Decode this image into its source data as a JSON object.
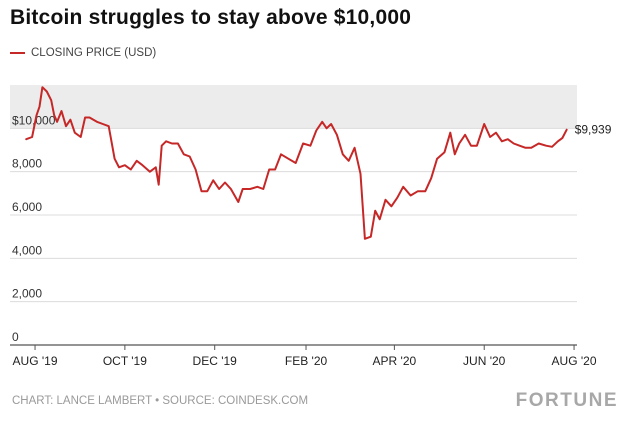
{
  "title": "Bitcoin struggles to stay above $10,000",
  "legend": {
    "label": "CLOSING PRICE (USD)"
  },
  "footer": {
    "credit": "CHART: LANCE LAMBERT • SOURCE: COINDESK.COM"
  },
  "brand": "FORTUNE",
  "colors": {
    "line": "#c62828",
    "band": "#ececec",
    "grid": "#dcdcdc",
    "axis": "#555555"
  },
  "chart_data": {
    "type": "line",
    "title": "Bitcoin struggles to stay above $10,000",
    "series": [
      {
        "name": "CLOSING PRICE (USD)",
        "points": [
          [
            "2019-07-26",
            9500
          ],
          [
            "2019-07-30",
            9600
          ],
          [
            "2019-08-02",
            10600
          ],
          [
            "2019-08-04",
            11000
          ],
          [
            "2019-08-06",
            11900
          ],
          [
            "2019-08-09",
            11700
          ],
          [
            "2019-08-12",
            11300
          ],
          [
            "2019-08-14",
            10600
          ],
          [
            "2019-08-16",
            10300
          ],
          [
            "2019-08-19",
            10800
          ],
          [
            "2019-08-22",
            10100
          ],
          [
            "2019-08-25",
            10400
          ],
          [
            "2019-08-28",
            9800
          ],
          [
            "2019-09-01",
            9600
          ],
          [
            "2019-09-04",
            10500
          ],
          [
            "2019-09-07",
            10500
          ],
          [
            "2019-09-12",
            10300
          ],
          [
            "2019-09-16",
            10200
          ],
          [
            "2019-09-20",
            10100
          ],
          [
            "2019-09-24",
            8600
          ],
          [
            "2019-09-27",
            8200
          ],
          [
            "2019-10-01",
            8300
          ],
          [
            "2019-10-05",
            8100
          ],
          [
            "2019-10-09",
            8500
          ],
          [
            "2019-10-13",
            8300
          ],
          [
            "2019-10-18",
            8000
          ],
          [
            "2019-10-22",
            8200
          ],
          [
            "2019-10-24",
            7400
          ],
          [
            "2019-10-26",
            9200
          ],
          [
            "2019-10-29",
            9400
          ],
          [
            "2019-11-02",
            9300
          ],
          [
            "2019-11-06",
            9300
          ],
          [
            "2019-11-10",
            8800
          ],
          [
            "2019-11-14",
            8700
          ],
          [
            "2019-11-18",
            8100
          ],
          [
            "2019-11-22",
            7100
          ],
          [
            "2019-11-26",
            7100
          ],
          [
            "2019-11-30",
            7600
          ],
          [
            "2019-12-04",
            7200
          ],
          [
            "2019-12-08",
            7500
          ],
          [
            "2019-12-12",
            7200
          ],
          [
            "2019-12-17",
            6600
          ],
          [
            "2019-12-20",
            7200
          ],
          [
            "2019-12-25",
            7200
          ],
          [
            "2019-12-30",
            7300
          ],
          [
            "2020-01-03",
            7200
          ],
          [
            "2020-01-07",
            8100
          ],
          [
            "2020-01-11",
            8100
          ],
          [
            "2020-01-15",
            8800
          ],
          [
            "2020-01-20",
            8600
          ],
          [
            "2020-01-25",
            8400
          ],
          [
            "2020-01-30",
            9300
          ],
          [
            "2020-02-04",
            9200
          ],
          [
            "2020-02-08",
            9900
          ],
          [
            "2020-02-12",
            10300
          ],
          [
            "2020-02-15",
            10000
          ],
          [
            "2020-02-18",
            10200
          ],
          [
            "2020-02-22",
            9700
          ],
          [
            "2020-02-26",
            8800
          ],
          [
            "2020-03-01",
            8500
          ],
          [
            "2020-03-05",
            9100
          ],
          [
            "2020-03-09",
            7900
          ],
          [
            "2020-03-12",
            4900
          ],
          [
            "2020-03-16",
            5000
          ],
          [
            "2020-03-19",
            6200
          ],
          [
            "2020-03-22",
            5800
          ],
          [
            "2020-03-26",
            6700
          ],
          [
            "2020-03-30",
            6400
          ],
          [
            "2020-04-03",
            6800
          ],
          [
            "2020-04-07",
            7300
          ],
          [
            "2020-04-12",
            6900
          ],
          [
            "2020-04-17",
            7100
          ],
          [
            "2020-04-22",
            7100
          ],
          [
            "2020-04-26",
            7700
          ],
          [
            "2020-04-30",
            8600
          ],
          [
            "2020-05-05",
            8900
          ],
          [
            "2020-05-09",
            9800
          ],
          [
            "2020-05-12",
            8800
          ],
          [
            "2020-05-15",
            9300
          ],
          [
            "2020-05-19",
            9700
          ],
          [
            "2020-05-23",
            9200
          ],
          [
            "2020-05-27",
            9200
          ],
          [
            "2020-06-01",
            10200
          ],
          [
            "2020-06-05",
            9600
          ],
          [
            "2020-06-09",
            9800
          ],
          [
            "2020-06-13",
            9400
          ],
          [
            "2020-06-17",
            9500
          ],
          [
            "2020-06-21",
            9300
          ],
          [
            "2020-06-25",
            9200
          ],
          [
            "2020-06-29",
            9100
          ],
          [
            "2020-07-03",
            9100
          ],
          [
            "2020-07-08",
            9300
          ],
          [
            "2020-07-13",
            9200
          ],
          [
            "2020-07-17",
            9150
          ],
          [
            "2020-07-21",
            9400
          ],
          [
            "2020-07-24",
            9550
          ],
          [
            "2020-07-27",
            9939
          ]
        ]
      }
    ],
    "y_ticks": [
      0,
      2000,
      4000,
      6000,
      8000,
      10000
    ],
    "y_tick_labels": [
      "0",
      "2,000",
      "4,000",
      "6,000",
      "8,000",
      "$10,000"
    ],
    "x_ticks": [
      "2019-08-01",
      "2019-10-01",
      "2019-12-01",
      "2020-02-01",
      "2020-04-01",
      "2020-06-01",
      "2020-08-01"
    ],
    "x_tick_labels": [
      "AUG '19",
      "OCT '19",
      "DEC '19",
      "FEB '20",
      "APR '20",
      "JUN '20",
      "AUG '20"
    ],
    "ylim": [
      0,
      12000
    ],
    "shaded_band": [
      10000,
      12000
    ],
    "end_label": "$9,939",
    "grid": true,
    "xlabel": "",
    "ylabel": ""
  }
}
